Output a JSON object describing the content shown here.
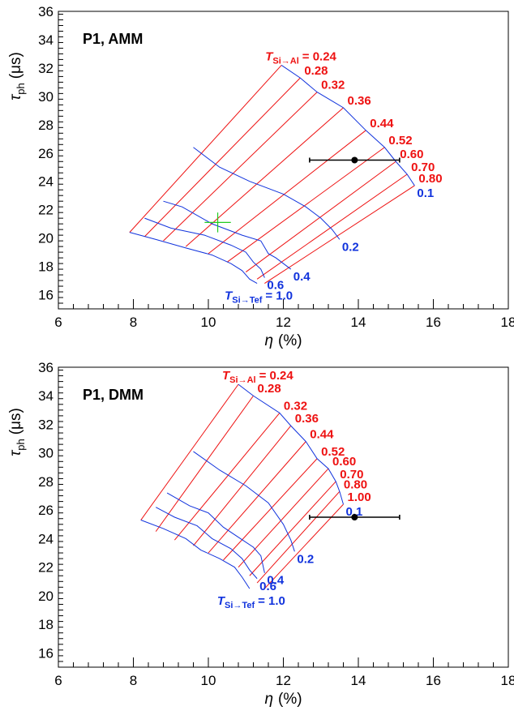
{
  "colors": {
    "axis": "#000000",
    "red": "#ee1111",
    "blue": "#1133dd",
    "green": "#22cc22",
    "point": "#000000"
  },
  "chart_data": [
    {
      "type": "line",
      "panel_label": "P1, AMM",
      "xlabel_main": "η",
      "xlabel_unit": "(%)",
      "ylabel_main": "τ",
      "ylabel_sub": "ph",
      "ylabel_unit": "(μs)",
      "xlim": [
        6,
        18
      ],
      "ylim": [
        15,
        36
      ],
      "xticks": [
        "6",
        "8",
        "10",
        "12",
        "14",
        "16",
        "18"
      ],
      "yticks": [
        "16",
        "18",
        "20",
        "22",
        "24",
        "26",
        "28",
        "30",
        "32",
        "34",
        "36"
      ],
      "red_lines": [
        {
          "label": "0.24",
          "points": [
            [
              7.9,
              20.4
            ],
            [
              11.95,
              32.2
            ]
          ]
        },
        {
          "label": "0.28",
          "points": [
            [
              8.3,
              20.1
            ],
            [
              12.45,
              31.3
            ]
          ]
        },
        {
          "label": "0.32",
          "points": [
            [
              8.8,
              19.8
            ],
            [
              12.9,
              30.3
            ]
          ]
        },
        {
          "label": "0.36",
          "points": [
            [
              9.4,
              19.4
            ],
            [
              13.6,
              29.2
            ]
          ]
        },
        {
          "label": "0.44",
          "points": [
            [
              10.0,
              18.9
            ],
            [
              14.2,
              27.6
            ]
          ]
        },
        {
          "label": "0.52",
          "points": [
            [
              10.5,
              18.3
            ],
            [
              14.7,
              26.4
            ]
          ]
        },
        {
          "label": "0.60",
          "points": [
            [
              11.0,
              17.6
            ],
            [
              15.0,
              25.4
            ]
          ]
        },
        {
          "label": "0.70",
          "points": [
            [
              11.3,
              17.1
            ],
            [
              15.3,
              24.5
            ]
          ]
        },
        {
          "label": "0.80",
          "points": [
            [
              11.5,
              16.8
            ],
            [
              15.5,
              23.7
            ]
          ]
        }
      ],
      "red_title": "T",
      "red_title_sub": "Si→Al",
      "red_title_eq": "= 0.24",
      "blue_lines": [
        {
          "label": "0.1",
          "points": [
            [
              11.95,
              32.2
            ],
            [
              12.45,
              31.3
            ],
            [
              12.9,
              30.3
            ],
            [
              13.6,
              29.2
            ],
            [
              14.2,
              27.6
            ],
            [
              14.7,
              26.4
            ],
            [
              15.0,
              25.4
            ],
            [
              15.3,
              24.5
            ],
            [
              15.5,
              23.7
            ]
          ]
        },
        {
          "label": "0.2",
          "points": [
            [
              9.6,
              26.4
            ],
            [
              10.3,
              25.0
            ],
            [
              11.1,
              24.0
            ],
            [
              12.0,
              23.1
            ],
            [
              12.6,
              22.2
            ],
            [
              13.0,
              21.4
            ],
            [
              13.3,
              20.6
            ],
            [
              13.5,
              19.9
            ]
          ]
        },
        {
          "label": "0.4",
          "points": [
            [
              8.8,
              22.6
            ],
            [
              9.3,
              22.2
            ],
            [
              10.1,
              21.0
            ],
            [
              10.9,
              20.2
            ],
            [
              11.4,
              19.8
            ],
            [
              11.6,
              18.9
            ],
            [
              11.8,
              18.6
            ],
            [
              12.0,
              18.2
            ],
            [
              12.2,
              17.8
            ]
          ]
        },
        {
          "label": "0.6",
          "points": [
            [
              8.3,
              21.4
            ],
            [
              9.0,
              20.7
            ],
            [
              9.9,
              20.2
            ],
            [
              10.6,
              19.5
            ],
            [
              11.0,
              19.0
            ],
            [
              11.2,
              18.3
            ],
            [
              11.4,
              17.8
            ],
            [
              11.5,
              17.2
            ]
          ]
        },
        {
          "label": "1.0",
          "points": [
            [
              7.9,
              20.4
            ],
            [
              8.6,
              19.9
            ],
            [
              9.4,
              19.3
            ],
            [
              10.1,
              18.8
            ],
            [
              10.6,
              18.2
            ],
            [
              10.9,
              17.7
            ],
            [
              11.1,
              17.1
            ],
            [
              11.3,
              16.8
            ]
          ]
        }
      ],
      "blue_title": "T",
      "blue_title_sub": "Si→Tef",
      "blue_title_eq": "= 1.0",
      "measurement": {
        "x": 13.9,
        "y": 25.5,
        "xerr_low": 12.7,
        "xerr_high": 15.1
      },
      "green_marker": {
        "x": 10.25,
        "y": 21.1,
        "dx": 0.35,
        "dy": 0.7
      }
    },
    {
      "type": "line",
      "panel_label": "P1, DMM",
      "xlabel_main": "η",
      "xlabel_unit": "(%)",
      "ylabel_main": "τ",
      "ylabel_sub": "ph",
      "ylabel_unit": "(μs)",
      "xlim": [
        6,
        18
      ],
      "ylim": [
        15,
        36
      ],
      "xticks": [
        "6",
        "8",
        "10",
        "12",
        "14",
        "16",
        "18"
      ],
      "yticks": [
        "16",
        "18",
        "20",
        "22",
        "24",
        "26",
        "28",
        "30",
        "32",
        "34",
        "36"
      ],
      "red_lines": [
        {
          "label": "0.24",
          "points": [
            [
              8.2,
              25.3
            ],
            [
              10.8,
              34.8
            ]
          ]
        },
        {
          "label": "0.28",
          "points": [
            [
              8.6,
              24.5
            ],
            [
              11.2,
              34.0
            ]
          ]
        },
        {
          "label": "0.32",
          "points": [
            [
              9.1,
              23.9
            ],
            [
              11.9,
              32.8
            ]
          ]
        },
        {
          "label": "0.36",
          "points": [
            [
              9.6,
              23.5
            ],
            [
              12.2,
              31.9
            ]
          ]
        },
        {
          "label": "0.44",
          "points": [
            [
              10.0,
              23.0
            ],
            [
              12.6,
              30.8
            ]
          ]
        },
        {
          "label": "0.52",
          "points": [
            [
              10.4,
              22.5
            ],
            [
              12.9,
              29.6
            ]
          ]
        },
        {
          "label": "0.60",
          "points": [
            [
              10.8,
              22.0
            ],
            [
              13.2,
              28.9
            ]
          ]
        },
        {
          "label": "0.70",
          "points": [
            [
              11.1,
              21.4
            ],
            [
              13.4,
              28.0
            ]
          ]
        },
        {
          "label": "0.80",
          "points": [
            [
              11.3,
              20.9
            ],
            [
              13.5,
              27.3
            ]
          ]
        },
        {
          "label": "1.00",
          "points": [
            [
              11.5,
              20.5
            ],
            [
              13.6,
              26.4
            ]
          ]
        }
      ],
      "red_title": "T",
      "red_title_sub": "Si→Al",
      "red_title_eq": "= 0.24",
      "blue_lines": [
        {
          "label": "0.1",
          "points": [
            [
              10.8,
              34.8
            ],
            [
              11.2,
              34.0
            ],
            [
              11.9,
              32.8
            ],
            [
              12.2,
              31.9
            ],
            [
              12.6,
              30.8
            ],
            [
              12.9,
              29.6
            ],
            [
              13.2,
              28.9
            ],
            [
              13.4,
              28.0
            ],
            [
              13.5,
              27.3
            ],
            [
              13.6,
              26.4
            ]
          ]
        },
        {
          "label": "0.2",
          "points": [
            [
              9.6,
              30.1
            ],
            [
              10.3,
              28.8
            ],
            [
              11.0,
              27.7
            ],
            [
              11.6,
              26.5
            ],
            [
              12.0,
              25.0
            ],
            [
              12.2,
              23.9
            ],
            [
              12.3,
              23.1
            ]
          ]
        },
        {
          "label": "0.4",
          "points": [
            [
              8.9,
              27.2
            ],
            [
              9.5,
              26.3
            ],
            [
              10.0,
              25.8
            ],
            [
              10.4,
              24.8
            ],
            [
              10.8,
              24.1
            ],
            [
              11.2,
              23.4
            ],
            [
              11.4,
              22.8
            ],
            [
              11.5,
              21.6
            ]
          ]
        },
        {
          "label": "0.6",
          "points": [
            [
              8.6,
              26.2
            ],
            [
              9.1,
              25.5
            ],
            [
              9.7,
              24.9
            ],
            [
              10.1,
              24.0
            ],
            [
              10.6,
              23.3
            ],
            [
              10.9,
              22.6
            ],
            [
              11.1,
              21.8
            ],
            [
              11.3,
              21.2
            ]
          ]
        },
        {
          "label": "1.0",
          "points": [
            [
              8.2,
              25.3
            ],
            [
              8.8,
              24.7
            ],
            [
              9.4,
              24.0
            ],
            [
              9.8,
              23.2
            ],
            [
              10.3,
              22.6
            ],
            [
              10.7,
              22.0
            ],
            [
              10.9,
              21.3
            ],
            [
              11.1,
              20.5
            ]
          ]
        }
      ],
      "blue_title": "T",
      "blue_title_sub": "Si→Tef",
      "blue_title_eq": "= 1.0",
      "measurement": {
        "x": 13.9,
        "y": 25.5,
        "xerr_low": 12.7,
        "xerr_high": 15.1
      }
    }
  ]
}
